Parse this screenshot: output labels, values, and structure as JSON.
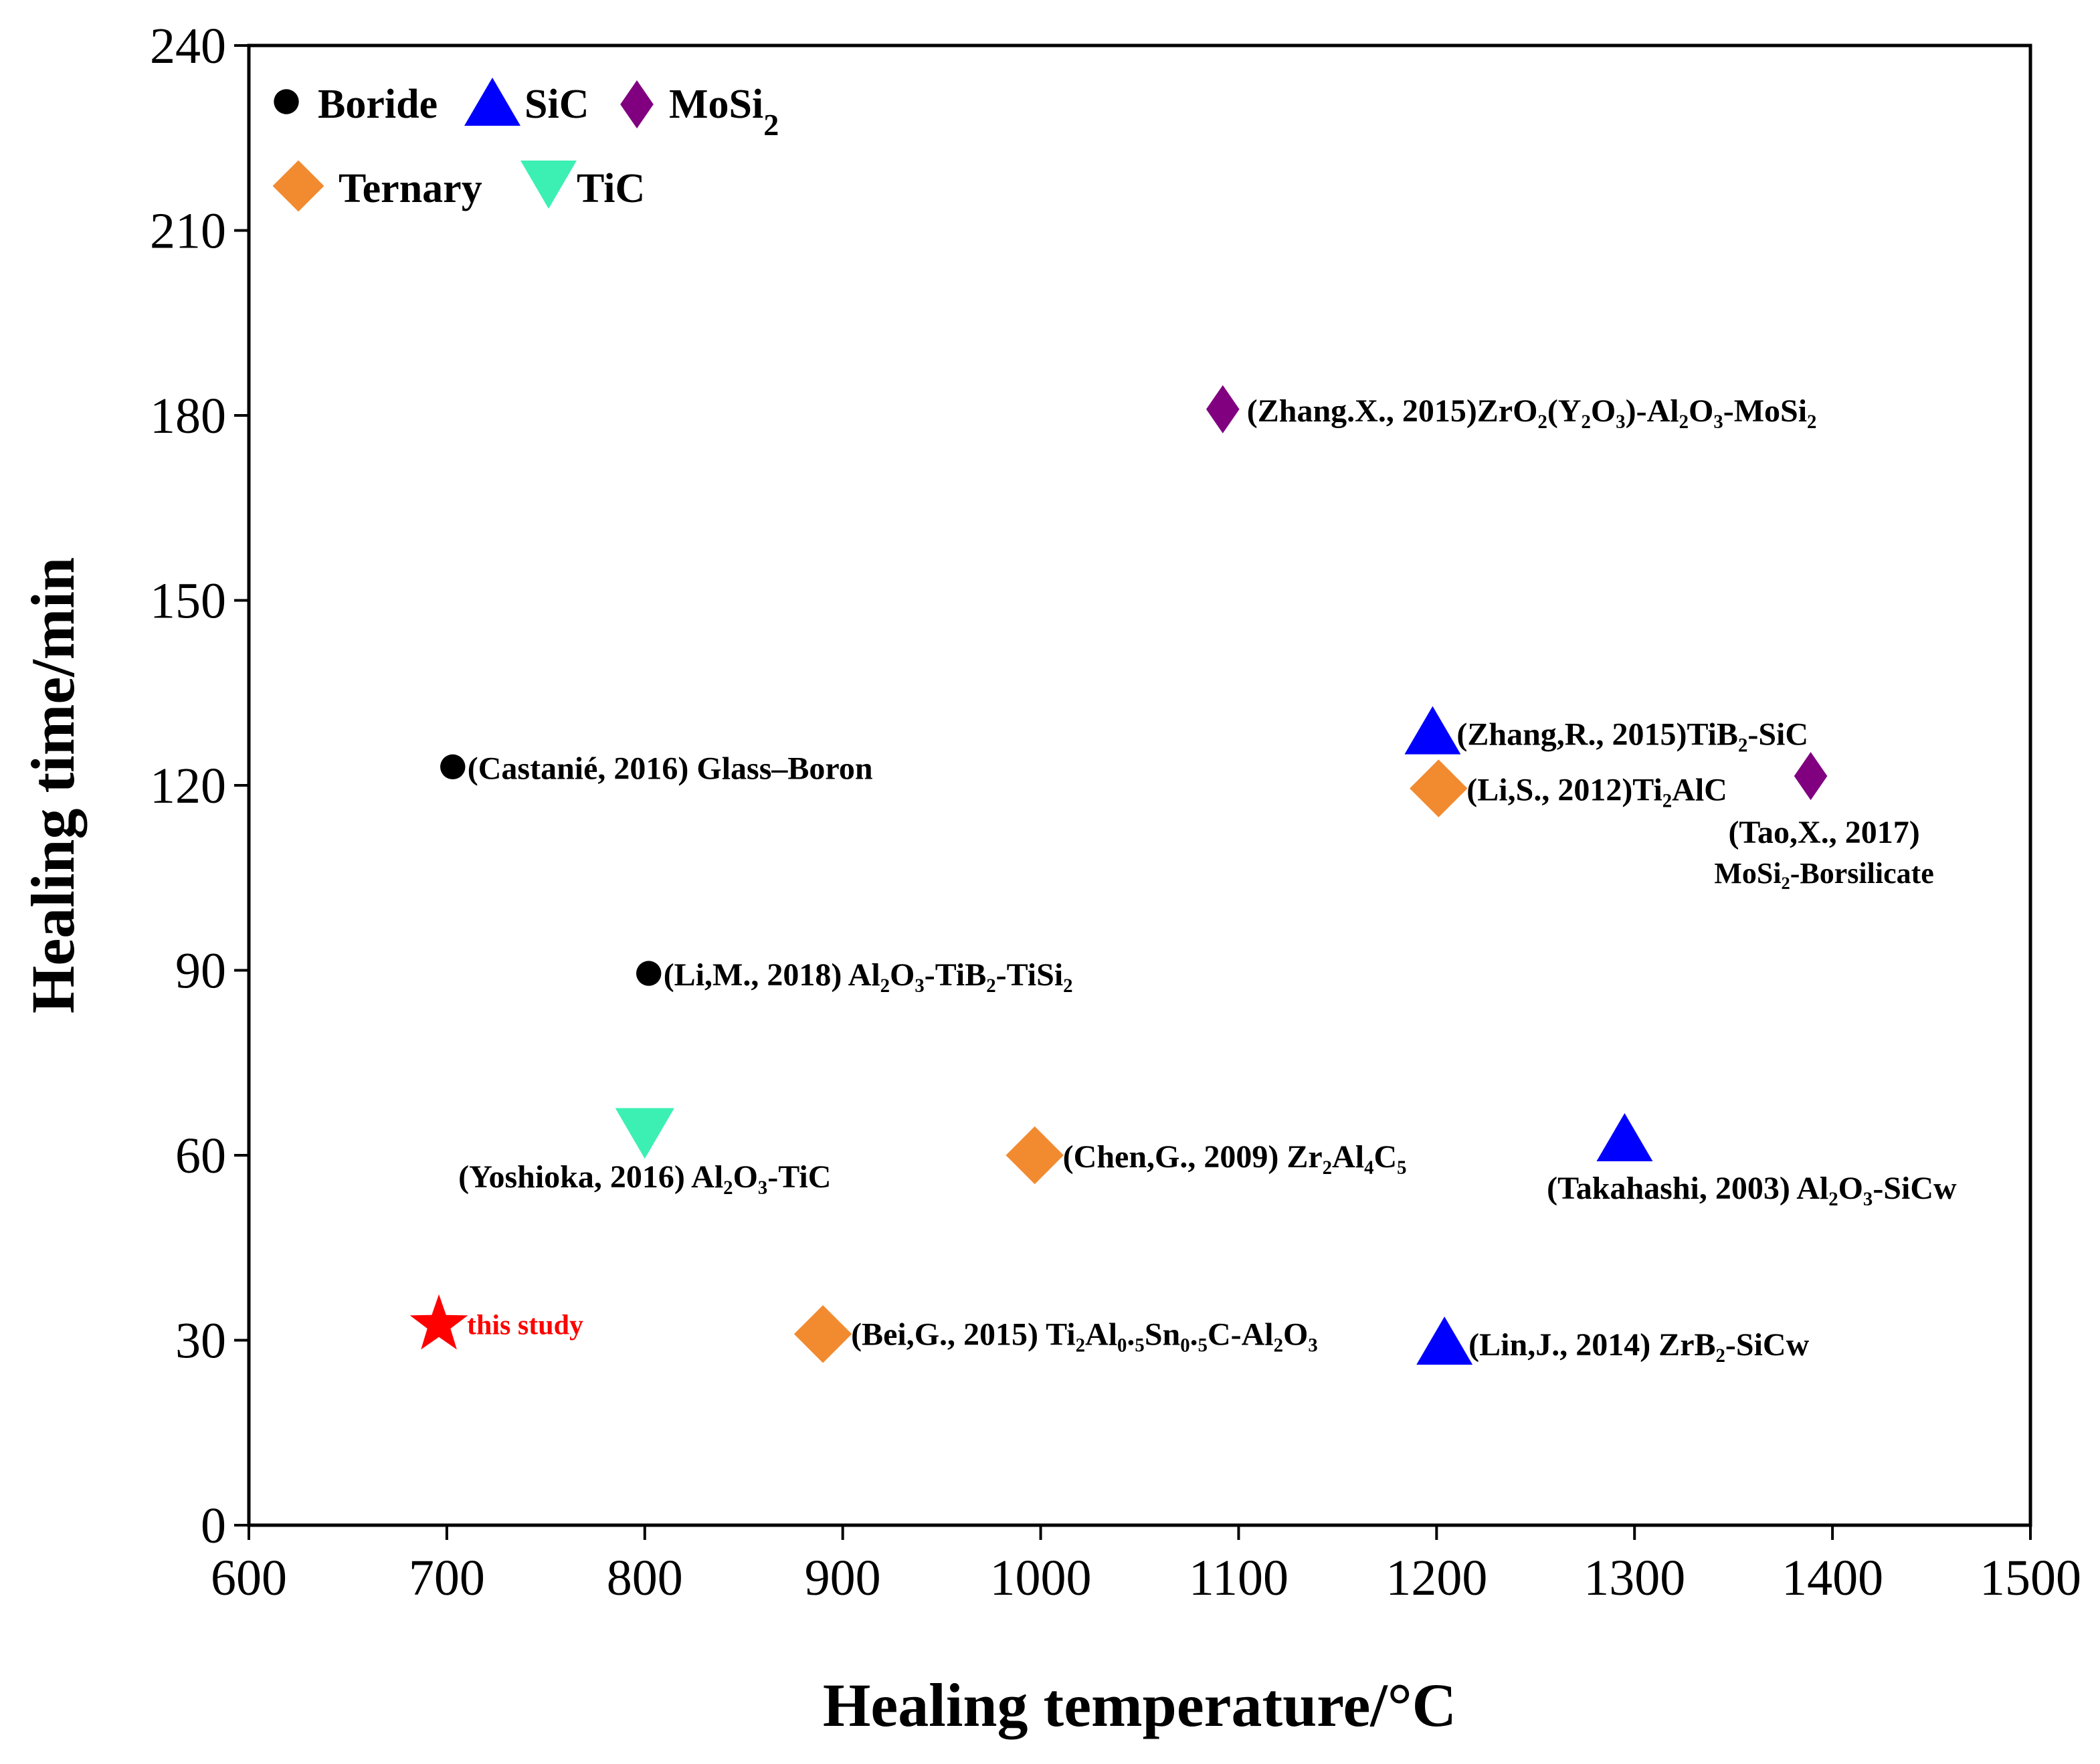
{
  "chart_data": {
    "type": "scatter",
    "title": "",
    "xlabel": "Healing temperature/°C",
    "ylabel": "Healing time/min",
    "xlim": [
      600,
      1500
    ],
    "ylim": [
      0,
      240
    ],
    "xticks": [
      600,
      700,
      800,
      900,
      1000,
      1100,
      1200,
      1300,
      1400,
      1500
    ],
    "yticks": [
      0,
      30,
      60,
      90,
      120,
      150,
      180,
      210,
      240
    ],
    "grid": false,
    "legend_position": "top-left",
    "colors": {
      "Boride": "#000000",
      "SiC": "#0000ff",
      "MoSi2": "#800080",
      "Ternary": "#f28a30",
      "TiC": "#3cf0b4",
      "this study": "#ff0000"
    },
    "legend": [
      {
        "series": "Boride",
        "label": "Boride",
        "sub": ""
      },
      {
        "series": "SiC",
        "label": "SiC",
        "sub": ""
      },
      {
        "series": "MoSi2",
        "label": "MoSi",
        "sub": "2"
      },
      {
        "series": "Ternary",
        "label": "Ternary",
        "sub": ""
      },
      {
        "series": "TiC",
        "label": "TiC",
        "sub": ""
      }
    ],
    "points": [
      {
        "series": "Boride",
        "x": 703,
        "y": 123,
        "label": "(Castanié, 2016) Glass–Boron"
      },
      {
        "series": "Boride",
        "x": 802,
        "y": 89.5,
        "label": "(Li,M., 2018) Al₂O₃-TiB₂-TiSi₂"
      },
      {
        "series": "TiC",
        "x": 800,
        "y": 64,
        "label": "(Yoshioka, 2016) Al₂O₃-TiC"
      },
      {
        "series": "this study",
        "x": 696,
        "y": 32.5,
        "label": "this study"
      },
      {
        "series": "Ternary",
        "x": 890,
        "y": 31,
        "label": "(Bei,G., 2015) Ti₂Al₀.₅Sn₀.₅C-Al₂O₃"
      },
      {
        "series": "Ternary",
        "x": 997,
        "y": 60,
        "label": "(Chen,G., 2009) Zr₂Al₄C₅"
      },
      {
        "series": "MoSi2",
        "x": 1092,
        "y": 181,
        "label": "(Zhang.X., 2015)ZrO₂(Y₂O₃)-Al₂O₃-MoSi₂"
      },
      {
        "series": "SiC",
        "x": 1198,
        "y": 128.5,
        "label": "(Zhang,R., 2015)TiB₂-SiC"
      },
      {
        "series": "Ternary",
        "x": 1201,
        "y": 119.5,
        "label": "(Li,S., 2012)Ti₂AlC"
      },
      {
        "series": "MoSi2",
        "x": 1389,
        "y": 121.5,
        "label": "(Tao,X., 2017) MoSi₂-Borsilicate"
      },
      {
        "series": "SiC",
        "x": 1295,
        "y": 62.5,
        "label": "(Takahashi, 2003) Al₂O₃-SiCw"
      },
      {
        "series": "SiC",
        "x": 1204,
        "y": 29.5,
        "label": "(Lin,J., 2014) ZrB₂-SiCw"
      }
    ],
    "annotation_lines": {
      "tao_line1": "(Tao,X., 2017)",
      "tao_line2": "MoSi₂-Borsilicate"
    }
  }
}
